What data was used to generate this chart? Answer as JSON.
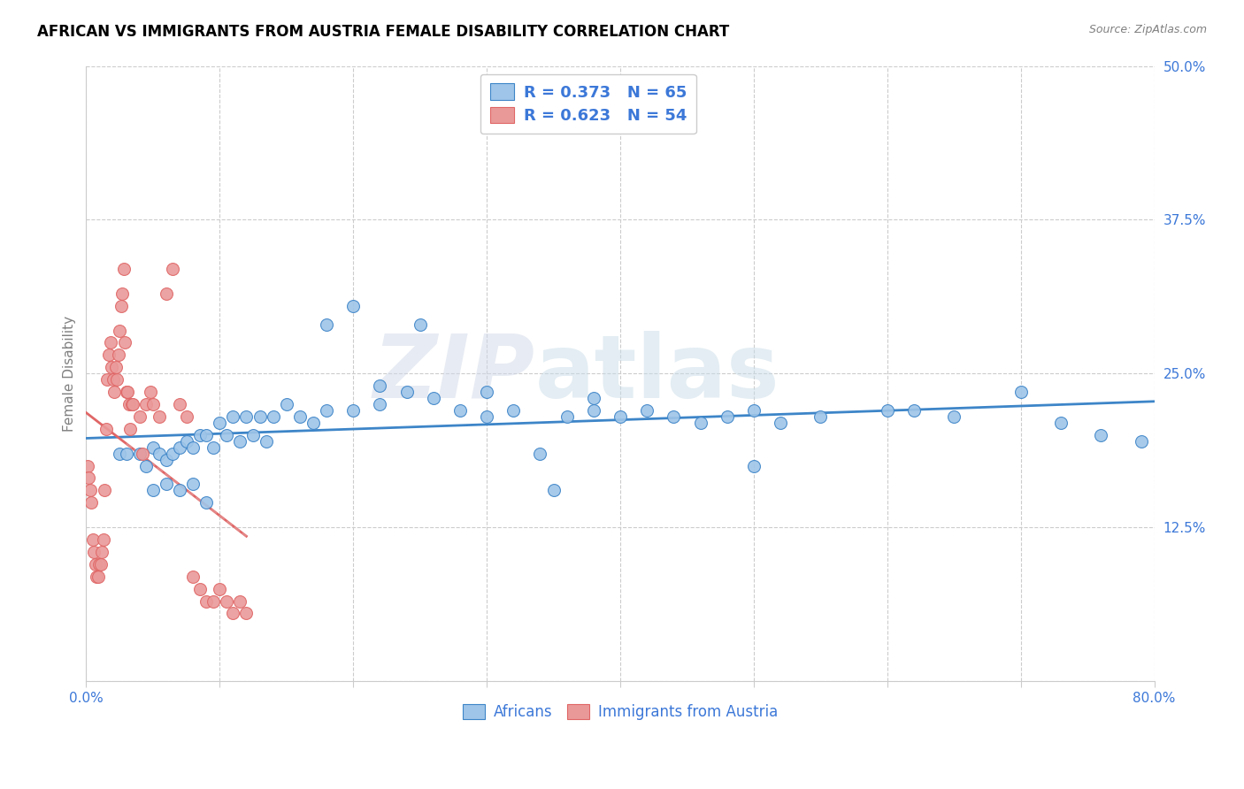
{
  "title": "AFRICAN VS IMMIGRANTS FROM AUSTRIA FEMALE DISABILITY CORRELATION CHART",
  "source": "Source: ZipAtlas.com",
  "ylabel": "Female Disability",
  "x_min": 0.0,
  "x_max": 0.8,
  "y_min": 0.0,
  "y_max": 0.5,
  "color_blue": "#9fc5e8",
  "color_pink": "#ea9999",
  "trendline_blue": "#3d85c8",
  "trendline_pink": "#e06666",
  "africans_x": [
    0.025,
    0.03,
    0.04,
    0.045,
    0.05,
    0.055,
    0.06,
    0.065,
    0.07,
    0.075,
    0.08,
    0.085,
    0.09,
    0.095,
    0.1,
    0.105,
    0.11,
    0.115,
    0.12,
    0.125,
    0.13,
    0.135,
    0.14,
    0.15,
    0.16,
    0.17,
    0.18,
    0.2,
    0.22,
    0.24,
    0.26,
    0.28,
    0.3,
    0.32,
    0.34,
    0.36,
    0.38,
    0.4,
    0.42,
    0.44,
    0.46,
    0.48,
    0.5,
    0.52,
    0.55,
    0.6,
    0.62,
    0.65,
    0.7,
    0.73,
    0.76,
    0.79,
    0.35,
    0.25,
    0.18,
    0.2,
    0.22,
    0.3,
    0.38,
    0.5,
    0.05,
    0.06,
    0.07,
    0.08,
    0.09
  ],
  "africans_y": [
    0.185,
    0.185,
    0.185,
    0.175,
    0.19,
    0.185,
    0.18,
    0.185,
    0.19,
    0.195,
    0.19,
    0.2,
    0.2,
    0.19,
    0.21,
    0.2,
    0.215,
    0.195,
    0.215,
    0.2,
    0.215,
    0.195,
    0.215,
    0.225,
    0.215,
    0.21,
    0.22,
    0.22,
    0.225,
    0.235,
    0.23,
    0.22,
    0.215,
    0.22,
    0.185,
    0.215,
    0.22,
    0.215,
    0.22,
    0.215,
    0.21,
    0.215,
    0.175,
    0.21,
    0.215,
    0.22,
    0.22,
    0.215,
    0.235,
    0.21,
    0.2,
    0.195,
    0.155,
    0.29,
    0.29,
    0.305,
    0.24,
    0.235,
    0.23,
    0.22,
    0.155,
    0.16,
    0.155,
    0.16,
    0.145
  ],
  "austria_x": [
    0.001,
    0.002,
    0.003,
    0.004,
    0.005,
    0.006,
    0.007,
    0.008,
    0.009,
    0.01,
    0.011,
    0.012,
    0.013,
    0.014,
    0.015,
    0.016,
    0.017,
    0.018,
    0.019,
    0.02,
    0.021,
    0.022,
    0.023,
    0.024,
    0.025,
    0.026,
    0.027,
    0.028,
    0.029,
    0.03,
    0.031,
    0.032,
    0.033,
    0.034,
    0.035,
    0.04,
    0.042,
    0.045,
    0.048,
    0.05,
    0.055,
    0.06,
    0.065,
    0.07,
    0.075,
    0.08,
    0.085,
    0.09,
    0.095,
    0.1,
    0.105,
    0.11,
    0.115,
    0.12
  ],
  "austria_y": [
    0.175,
    0.165,
    0.155,
    0.145,
    0.115,
    0.105,
    0.095,
    0.085,
    0.085,
    0.095,
    0.095,
    0.105,
    0.115,
    0.155,
    0.205,
    0.245,
    0.265,
    0.275,
    0.255,
    0.245,
    0.235,
    0.255,
    0.245,
    0.265,
    0.285,
    0.305,
    0.315,
    0.335,
    0.275,
    0.235,
    0.235,
    0.225,
    0.205,
    0.225,
    0.225,
    0.215,
    0.185,
    0.225,
    0.235,
    0.225,
    0.215,
    0.315,
    0.335,
    0.225,
    0.215,
    0.085,
    0.075,
    0.065,
    0.065,
    0.075,
    0.065,
    0.055,
    0.065,
    0.055
  ]
}
